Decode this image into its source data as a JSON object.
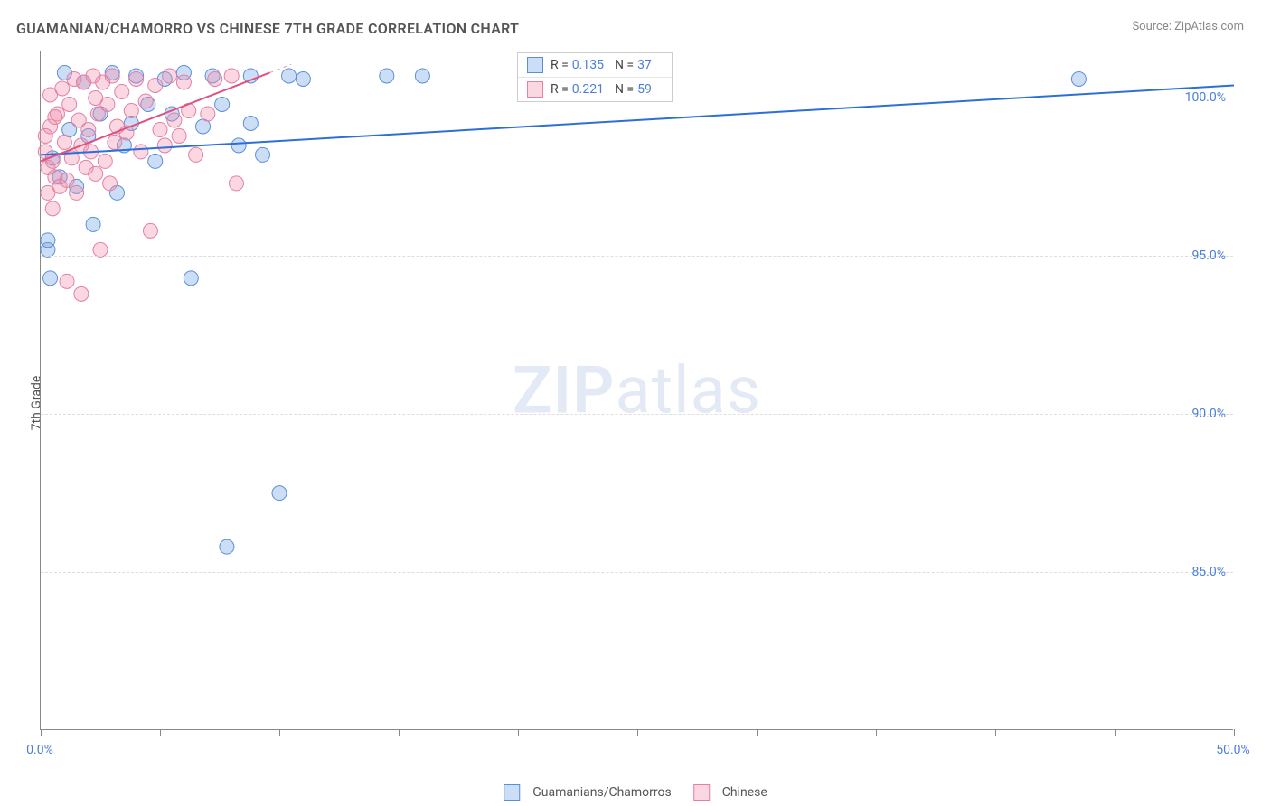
{
  "title": "GUAMANIAN/CHAMORRO VS CHINESE 7TH GRADE CORRELATION CHART",
  "source_label": "Source:",
  "source_value": "ZipAtlas.com",
  "ylabel": "7th Grade",
  "watermark_bold": "ZIP",
  "watermark_light": "atlas",
  "chart": {
    "type": "scatter",
    "xlim": [
      0,
      50
    ],
    "ylim": [
      80,
      101.5
    ],
    "xtick_positions": [
      0,
      5,
      10,
      15,
      20,
      25,
      30,
      35,
      40,
      45,
      50
    ],
    "xtick_labels": {
      "0": "0.0%",
      "50": "50.0%"
    },
    "ytick_positions": [
      85,
      90,
      95,
      100
    ],
    "ytick_labels": [
      "85.0%",
      "90.0%",
      "95.0%",
      "100.0%"
    ],
    "grid_color": "#dddddd",
    "background_color": "#ffffff",
    "axis_color": "#888888",
    "tick_label_color": "#4a7fd8",
    "series": [
      {
        "name": "Guamanians/Chamorros",
        "color_fill": "rgba(110,160,230,0.35)",
        "color_stroke": "#5a8fd8",
        "marker_radius": 8,
        "R": 0.135,
        "N": 37,
        "trend": {
          "x1": 0,
          "y1": 98.2,
          "x2": 50,
          "y2": 100.4,
          "color": "#2d6fd8",
          "width": 2
        },
        "points": [
          [
            0.3,
            95.2
          ],
          [
            0.5,
            98.1
          ],
          [
            0.8,
            97.5
          ],
          [
            1.0,
            100.8
          ],
          [
            1.2,
            99.0
          ],
          [
            1.5,
            97.2
          ],
          [
            1.8,
            100.5
          ],
          [
            2.0,
            98.8
          ],
          [
            2.2,
            96.0
          ],
          [
            2.5,
            99.5
          ],
          [
            3.0,
            100.8
          ],
          [
            3.2,
            97.0
          ],
          [
            3.5,
            98.5
          ],
          [
            3.8,
            99.2
          ],
          [
            4.0,
            100.7
          ],
          [
            4.5,
            99.8
          ],
          [
            4.8,
            98.0
          ],
          [
            5.2,
            100.6
          ],
          [
            5.5,
            99.5
          ],
          [
            6.0,
            100.8
          ],
          [
            6.3,
            94.3
          ],
          [
            6.8,
            99.1
          ],
          [
            7.2,
            100.7
          ],
          [
            7.6,
            99.8
          ],
          [
            7.8,
            85.8
          ],
          [
            8.3,
            98.5
          ],
          [
            8.8,
            99.2
          ],
          [
            8.8,
            100.7
          ],
          [
            9.3,
            98.2
          ],
          [
            10.0,
            87.5
          ],
          [
            10.4,
            100.7
          ],
          [
            11.0,
            100.6
          ],
          [
            14.5,
            100.7
          ],
          [
            16.0,
            100.7
          ],
          [
            43.5,
            100.6
          ],
          [
            0.4,
            94.3
          ],
          [
            0.3,
            95.5
          ]
        ]
      },
      {
        "name": "Chinese",
        "color_fill": "rgba(240,140,170,0.35)",
        "color_stroke": "#e47fa5",
        "marker_radius": 8,
        "R": 0.221,
        "N": 59,
        "trend": {
          "x1": 0,
          "y1": 98.0,
          "x2": 9.6,
          "y2": 100.8,
          "color": "#e0517f",
          "width": 2,
          "dash_after": 10.5
        },
        "points": [
          [
            0.2,
            98.3
          ],
          [
            0.3,
            97.8
          ],
          [
            0.4,
            99.1
          ],
          [
            0.5,
            98.0
          ],
          [
            0.6,
            97.5
          ],
          [
            0.7,
            99.5
          ],
          [
            0.8,
            97.2
          ],
          [
            0.9,
            100.3
          ],
          [
            1.0,
            98.6
          ],
          [
            1.1,
            97.4
          ],
          [
            1.2,
            99.8
          ],
          [
            1.3,
            98.1
          ],
          [
            1.4,
            100.6
          ],
          [
            1.5,
            97.0
          ],
          [
            1.6,
            99.3
          ],
          [
            1.7,
            98.5
          ],
          [
            1.8,
            100.5
          ],
          [
            1.9,
            97.8
          ],
          [
            2.0,
            99.0
          ],
          [
            2.1,
            98.3
          ],
          [
            2.2,
            100.7
          ],
          [
            2.3,
            97.6
          ],
          [
            2.4,
            99.5
          ],
          [
            2.5,
            95.2
          ],
          [
            2.6,
            100.5
          ],
          [
            2.7,
            98.0
          ],
          [
            2.8,
            99.8
          ],
          [
            2.9,
            97.3
          ],
          [
            3.0,
            100.7
          ],
          [
            3.1,
            98.6
          ],
          [
            3.2,
            99.1
          ],
          [
            3.4,
            100.2
          ],
          [
            3.6,
            98.9
          ],
          [
            3.8,
            99.6
          ],
          [
            4.0,
            100.6
          ],
          [
            4.2,
            98.3
          ],
          [
            4.4,
            99.9
          ],
          [
            4.6,
            95.8
          ],
          [
            4.8,
            100.4
          ],
          [
            5.0,
            99.0
          ],
          [
            5.2,
            98.5
          ],
          [
            5.4,
            100.7
          ],
          [
            5.6,
            99.3
          ],
          [
            5.8,
            98.8
          ],
          [
            6.0,
            100.5
          ],
          [
            6.2,
            99.6
          ],
          [
            6.5,
            98.2
          ],
          [
            7.0,
            99.5
          ],
          [
            7.3,
            100.6
          ],
          [
            8.0,
            100.7
          ],
          [
            8.2,
            97.3
          ],
          [
            0.3,
            97.0
          ],
          [
            0.5,
            96.5
          ],
          [
            1.1,
            94.2
          ],
          [
            1.7,
            93.8
          ],
          [
            0.2,
            98.8
          ],
          [
            0.4,
            100.1
          ],
          [
            0.6,
            99.4
          ],
          [
            2.3,
            100.0
          ]
        ]
      }
    ]
  },
  "legend_stats": {
    "rows": [
      {
        "swatch_fill": "rgba(110,160,230,0.35)",
        "swatch_stroke": "#5a8fd8",
        "r_label": "R =",
        "r_val": "0.135",
        "n_label": "N =",
        "n_val": "37"
      },
      {
        "swatch_fill": "rgba(240,140,170,0.35)",
        "swatch_stroke": "#e47fa5",
        "r_label": "R =",
        "r_val": "0.221",
        "n_label": "N =",
        "n_val": "59"
      }
    ]
  },
  "bottom_legend": [
    {
      "swatch_fill": "rgba(110,160,230,0.35)",
      "swatch_stroke": "#5a8fd8",
      "label": "Guamanians/Chamorros"
    },
    {
      "swatch_fill": "rgba(240,140,170,0.35)",
      "swatch_stroke": "#e47fa5",
      "label": "Chinese"
    }
  ]
}
